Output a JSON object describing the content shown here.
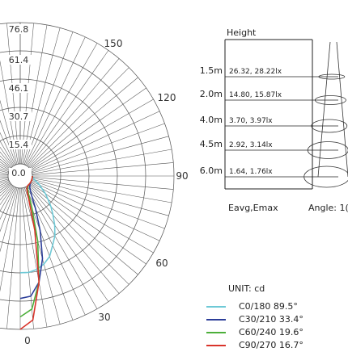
{
  "chart_data": [
    {
      "type": "polar",
      "title": "",
      "unit_label": "UNIT: cd",
      "radial_ticks": [
        "76.8",
        "61.4",
        "46.1",
        "30.7",
        "15.4",
        "0.0"
      ],
      "angle_labels": [
        "0",
        "30",
        "60",
        "90",
        "120",
        "150"
      ],
      "grid": true,
      "series": [
        {
          "name": "C0/180 89.5°",
          "color": "#6ec9d6",
          "angles": [
            0,
            5,
            10,
            15,
            20,
            25,
            30,
            35,
            40,
            45,
            50,
            55,
            60,
            65,
            70,
            75,
            80,
            85,
            90
          ],
          "values": [
            46,
            46,
            45,
            43,
            40,
            35,
            31,
            26,
            21,
            17,
            13,
            10,
            7,
            5,
            3,
            1.5,
            0.8,
            0.3,
            0
          ]
        },
        {
          "name": "C30/210 33.4°",
          "color": "#2c3e99",
          "angles": [
            0,
            5,
            10,
            15,
            20,
            25,
            30,
            35,
            40,
            45,
            50,
            55,
            60,
            65,
            70,
            75,
            80,
            85,
            90
          ],
          "values": [
            60,
            59,
            52,
            40,
            25,
            13,
            6,
            3,
            1.5,
            0.8,
            0.4,
            0.2,
            0.1,
            0,
            0,
            0,
            0,
            0,
            0
          ]
        },
        {
          "name": "C60/240 19.6°",
          "color": "#4caf3a",
          "angles": [
            0,
            5,
            10,
            15,
            20,
            25,
            30,
            35,
            40,
            45,
            50,
            55,
            60,
            65,
            70,
            75,
            80,
            85,
            90
          ],
          "values": [
            70,
            66,
            52,
            30,
            12,
            4,
            1.5,
            0.6,
            0.2,
            0,
            0,
            0,
            0,
            0,
            0,
            0,
            0,
            0,
            0
          ]
        },
        {
          "name": "C90/270 16.7°",
          "color": "#d9342b",
          "angles": [
            0,
            5,
            10,
            15,
            20,
            25,
            30,
            35,
            40,
            45,
            50,
            55,
            60,
            65,
            70,
            75,
            80,
            85,
            90
          ],
          "values": [
            76.8,
            72,
            52,
            24,
            7,
            2,
            0.6,
            0.2,
            0,
            0,
            0,
            0,
            0,
            0,
            0,
            0,
            0,
            0,
            0
          ]
        }
      ]
    },
    {
      "type": "table",
      "title": "Height",
      "columns": [
        "Height",
        "Eavg,Emax",
        "Angle"
      ],
      "rows": [
        {
          "height": "1.5m",
          "values": "26.32,  28.22lx"
        },
        {
          "height": "2.0m",
          "values": "14.80,  15.87lx"
        },
        {
          "height": "4.0m",
          "values": "3.70,  3.97lx"
        },
        {
          "height": "4.5m",
          "values": "2.92,  3.14lx"
        },
        {
          "height": "6.0m",
          "values": "1.64,  1.76lx"
        }
      ],
      "footer_left": "Eavg,Emax",
      "footer_right": "Angle: 1("
    }
  ]
}
